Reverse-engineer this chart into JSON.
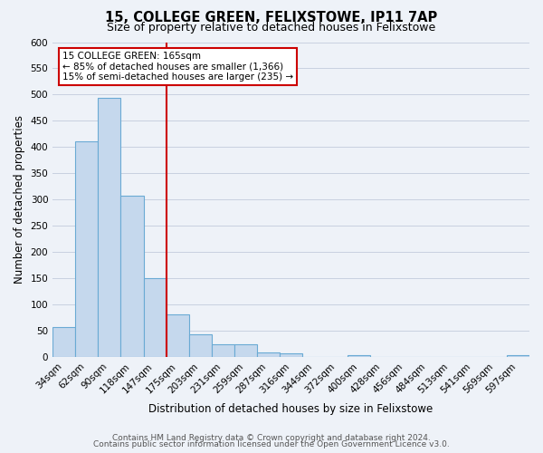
{
  "title": "15, COLLEGE GREEN, FELIXSTOWE, IP11 7AP",
  "subtitle": "Size of property relative to detached houses in Felixstowe",
  "xlabel": "Distribution of detached houses by size in Felixstowe",
  "ylabel": "Number of detached properties",
  "bin_labels": [
    "34sqm",
    "62sqm",
    "90sqm",
    "118sqm",
    "147sqm",
    "175sqm",
    "203sqm",
    "231sqm",
    "259sqm",
    "287sqm",
    "316sqm",
    "344sqm",
    "372sqm",
    "400sqm",
    "428sqm",
    "456sqm",
    "484sqm",
    "513sqm",
    "541sqm",
    "569sqm",
    "597sqm"
  ],
  "bar_values": [
    57,
    411,
    494,
    307,
    150,
    82,
    44,
    25,
    25,
    10,
    7,
    0,
    0,
    4,
    0,
    0,
    0,
    0,
    0,
    0,
    4
  ],
  "bar_color": "#c5d8ed",
  "bar_edge_color": "#6aaad4",
  "ylim": [
    0,
    600
  ],
  "yticks": [
    0,
    50,
    100,
    150,
    200,
    250,
    300,
    350,
    400,
    450,
    500,
    550,
    600
  ],
  "vline_color": "#cc0000",
  "annotation_title": "15 COLLEGE GREEN: 165sqm",
  "annotation_line1": "← 85% of detached houses are smaller (1,366)",
  "annotation_line2": "15% of semi-detached houses are larger (235) →",
  "annotation_box_color": "#ffffff",
  "annotation_box_edge": "#cc0000",
  "footer1": "Contains HM Land Registry data © Crown copyright and database right 2024.",
  "footer2": "Contains public sector information licensed under the Open Government Licence v3.0.",
  "background_color": "#eef2f8",
  "plot_bg_color": "#eef2f8",
  "grid_color": "#c8d0e0",
  "title_fontsize": 10.5,
  "subtitle_fontsize": 9,
  "axis_label_fontsize": 8.5,
  "tick_fontsize": 7.5,
  "footer_fontsize": 6.5
}
